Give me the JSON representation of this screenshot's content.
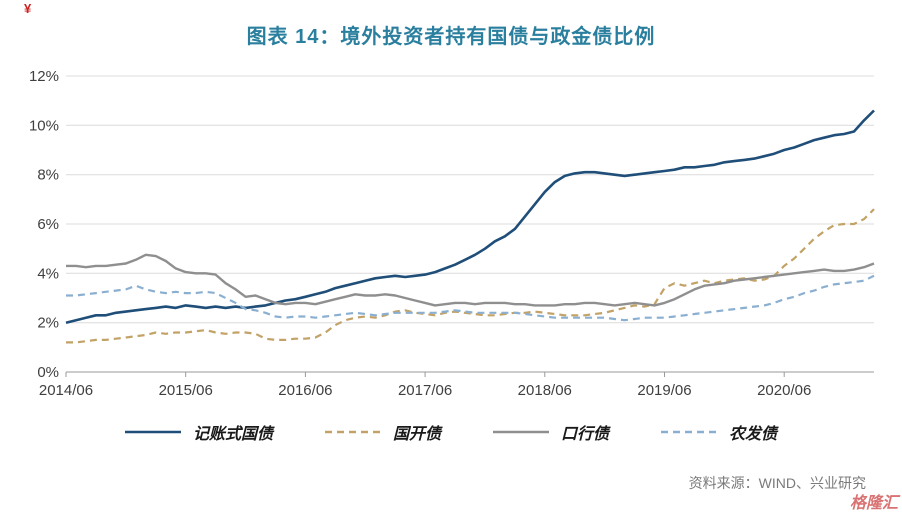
{
  "title": "图表 14：境外投资者持有国债与政金债比例",
  "source": "资料来源：WIND、兴业研究",
  "watermark": "格隆汇",
  "corner_mark": "¥",
  "colors": {
    "title": "#2A7F9E",
    "grid": "#DCDCDC",
    "axis": "#9A9A9A",
    "source_text": "#7A7A7A",
    "watermark": "#C62828"
  },
  "chart_data": {
    "type": "line",
    "title": "图表 14：境外投资者持有国债与政金债比例",
    "xlabel": "",
    "ylabel": "",
    "ylim": [
      0,
      12
    ],
    "y_step": 2,
    "y_ticks": [
      "0%",
      "2%",
      "4%",
      "6%",
      "8%",
      "10%",
      "12%"
    ],
    "x_unit": "month",
    "x_range": [
      "2014/06",
      "2021/03"
    ],
    "x_ticks": [
      {
        "label": "2014/06",
        "i": 0
      },
      {
        "label": "2015/06",
        "i": 12
      },
      {
        "label": "2016/06",
        "i": 24
      },
      {
        "label": "2017/06",
        "i": 36
      },
      {
        "label": "2018/06",
        "i": 48
      },
      {
        "label": "2019/06",
        "i": 60
      },
      {
        "label": "2020/06",
        "i": 72
      }
    ],
    "grid": "horizontal",
    "legend_position": "bottom",
    "series": [
      {
        "key": "treasury",
        "name": "记账式国债",
        "color": "#1F4E79",
        "dash": null,
        "width": 2.6,
        "values": [
          2.0,
          2.1,
          2.2,
          2.3,
          2.3,
          2.4,
          2.45,
          2.5,
          2.55,
          2.6,
          2.65,
          2.6,
          2.7,
          2.65,
          2.6,
          2.65,
          2.6,
          2.65,
          2.6,
          2.65,
          2.7,
          2.8,
          2.9,
          2.95,
          3.05,
          3.15,
          3.25,
          3.4,
          3.5,
          3.6,
          3.7,
          3.8,
          3.85,
          3.9,
          3.85,
          3.9,
          3.95,
          4.05,
          4.2,
          4.35,
          4.55,
          4.75,
          5.0,
          5.3,
          5.5,
          5.8,
          6.3,
          6.8,
          7.3,
          7.7,
          7.95,
          8.05,
          8.1,
          8.1,
          8.05,
          8.0,
          7.95,
          8.0,
          8.05,
          8.1,
          8.15,
          8.2,
          8.3,
          8.3,
          8.35,
          8.4,
          8.5,
          8.55,
          8.6,
          8.65,
          8.75,
          8.85,
          9.0,
          9.1,
          9.25,
          9.4,
          9.5,
          9.6,
          9.65,
          9.75,
          10.2,
          10.6
        ]
      },
      {
        "key": "cdb",
        "name": "国开债",
        "color": "#C2A266",
        "dash": "7 5",
        "width": 2.2,
        "values": [
          1.2,
          1.2,
          1.25,
          1.3,
          1.3,
          1.35,
          1.4,
          1.45,
          1.5,
          1.6,
          1.55,
          1.6,
          1.6,
          1.65,
          1.7,
          1.6,
          1.55,
          1.6,
          1.6,
          1.55,
          1.35,
          1.3,
          1.3,
          1.35,
          1.35,
          1.4,
          1.6,
          1.9,
          2.1,
          2.2,
          2.25,
          2.2,
          2.3,
          2.45,
          2.5,
          2.4,
          2.35,
          2.3,
          2.4,
          2.45,
          2.4,
          2.35,
          2.3,
          2.3,
          2.35,
          2.4,
          2.4,
          2.45,
          2.4,
          2.35,
          2.3,
          2.3,
          2.3,
          2.35,
          2.4,
          2.5,
          2.6,
          2.7,
          2.65,
          2.75,
          3.4,
          3.6,
          3.5,
          3.6,
          3.7,
          3.6,
          3.7,
          3.75,
          3.8,
          3.7,
          3.75,
          3.9,
          4.3,
          4.6,
          5.0,
          5.4,
          5.7,
          5.95,
          6.0,
          6.0,
          6.2,
          6.6
        ]
      },
      {
        "key": "exim",
        "name": "口行债",
        "color": "#8F8F8F",
        "dash": null,
        "width": 2.4,
        "values": [
          4.3,
          4.3,
          4.25,
          4.3,
          4.3,
          4.35,
          4.4,
          4.55,
          4.75,
          4.7,
          4.5,
          4.2,
          4.05,
          4.0,
          4.0,
          3.95,
          3.6,
          3.35,
          3.05,
          3.1,
          2.95,
          2.8,
          2.75,
          2.8,
          2.8,
          2.75,
          2.85,
          2.95,
          3.05,
          3.15,
          3.1,
          3.1,
          3.15,
          3.1,
          3.0,
          2.9,
          2.8,
          2.7,
          2.75,
          2.8,
          2.8,
          2.75,
          2.8,
          2.8,
          2.8,
          2.75,
          2.75,
          2.7,
          2.7,
          2.7,
          2.75,
          2.75,
          2.8,
          2.8,
          2.75,
          2.7,
          2.75,
          2.8,
          2.75,
          2.7,
          2.8,
          2.95,
          3.15,
          3.35,
          3.5,
          3.55,
          3.6,
          3.7,
          3.75,
          3.8,
          3.85,
          3.9,
          3.95,
          4.0,
          4.05,
          4.1,
          4.15,
          4.1,
          4.1,
          4.15,
          4.25,
          4.4
        ]
      },
      {
        "key": "adbc",
        "name": "农发债",
        "color": "#8AAFD0",
        "dash": "7 5",
        "width": 2.2,
        "values": [
          3.1,
          3.1,
          3.15,
          3.2,
          3.25,
          3.3,
          3.35,
          3.5,
          3.35,
          3.25,
          3.2,
          3.25,
          3.2,
          3.2,
          3.25,
          3.2,
          3.0,
          2.8,
          2.55,
          2.5,
          2.4,
          2.25,
          2.2,
          2.25,
          2.25,
          2.2,
          2.25,
          2.3,
          2.35,
          2.4,
          2.35,
          2.3,
          2.35,
          2.4,
          2.4,
          2.4,
          2.4,
          2.4,
          2.45,
          2.5,
          2.45,
          2.4,
          2.4,
          2.4,
          2.4,
          2.4,
          2.35,
          2.3,
          2.25,
          2.2,
          2.2,
          2.2,
          2.2,
          2.2,
          2.2,
          2.15,
          2.1,
          2.15,
          2.2,
          2.2,
          2.2,
          2.25,
          2.3,
          2.35,
          2.4,
          2.45,
          2.5,
          2.55,
          2.6,
          2.65,
          2.7,
          2.8,
          2.95,
          3.05,
          3.2,
          3.3,
          3.45,
          3.55,
          3.6,
          3.65,
          3.7,
          3.9
        ]
      }
    ]
  }
}
